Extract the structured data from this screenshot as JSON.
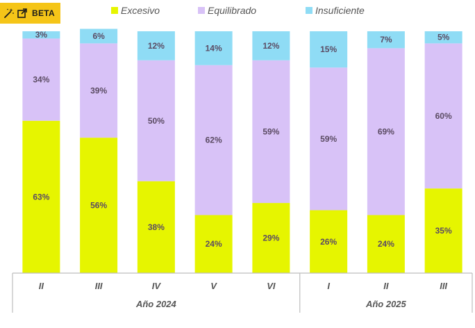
{
  "badge": {
    "label": "BETA",
    "icons": [
      "magic-wand-icon",
      "external-link-icon"
    ]
  },
  "colors": {
    "Excesivo": "#e6f500",
    "Equilibrado": "#d8c2f7",
    "Insuficiente": "#8fdcf5",
    "text": "#5b4b63",
    "axis": "#bdbdbd"
  },
  "chart_data": {
    "type": "bar",
    "stacked": true,
    "ylim": [
      0,
      100
    ],
    "grid": false,
    "legend_position": "top",
    "categories": [
      "II",
      "III",
      "IV",
      "V",
      "VI",
      "I",
      "II",
      "III"
    ],
    "groups": [
      {
        "label": "Año 2024",
        "categories": [
          "II",
          "III",
          "IV",
          "V",
          "VI"
        ]
      },
      {
        "label": "Año 2025",
        "categories": [
          "I",
          "II",
          "III"
        ]
      }
    ],
    "series": [
      {
        "name": "Excesivo",
        "values": [
          63,
          56,
          38,
          24,
          29,
          26,
          24,
          35
        ]
      },
      {
        "name": "Equilibrado",
        "values": [
          34,
          39,
          50,
          62,
          59,
          59,
          69,
          60
        ]
      },
      {
        "name": "Insuficiente",
        "values": [
          3,
          6,
          12,
          14,
          12,
          15,
          7,
          5
        ]
      }
    ],
    "data_labels": [
      [
        "63%",
        "56%",
        "38%",
        "24%",
        "29%",
        "26%",
        "24%",
        "35%"
      ],
      [
        "34%",
        "39%",
        "50%",
        "62%",
        "59%",
        "59%",
        "69%",
        "60%"
      ],
      [
        "3%",
        "6%",
        "12%",
        "14%",
        "12%",
        "15%",
        "7%",
        "5%"
      ]
    ]
  }
}
